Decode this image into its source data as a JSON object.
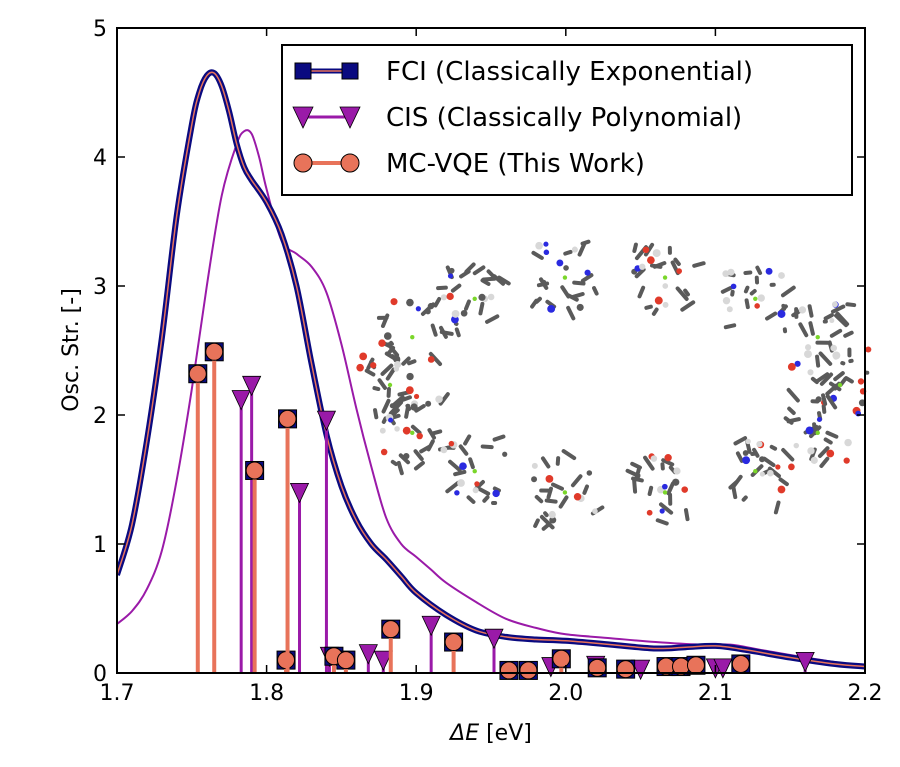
{
  "chart_data": {
    "type": "line",
    "xlabel_math": "ΔE",
    "xlabel_unit": " [eV]",
    "ylabel": "Osc. Str. [-]",
    "xlim": [
      1.7,
      2.2
    ],
    "ylim": [
      0,
      5
    ],
    "xticks": [
      "1.7",
      "1.8",
      "1.9",
      "2.0",
      "2.1",
      "2.2"
    ],
    "yticks": [
      "0",
      "1",
      "2",
      "3",
      "4",
      "5"
    ],
    "grid": false,
    "legend_position": "top-right",
    "legend": [
      {
        "label": "FCI (Classically Exponential)",
        "color": "#0a0a80",
        "marker": "square"
      },
      {
        "label": "CIS (Classically Polynomial)",
        "color": "#9a1aa8",
        "marker": "triangle-down"
      },
      {
        "label": "MC-VQE (This Work)",
        "color": "#e8735a",
        "marker": "circle"
      }
    ],
    "fci_curve": {
      "x": [
        1.7,
        1.71,
        1.72,
        1.73,
        1.74,
        1.75,
        1.755,
        1.76,
        1.765,
        1.77,
        1.775,
        1.78,
        1.785,
        1.79,
        1.8,
        1.81,
        1.82,
        1.83,
        1.84,
        1.85,
        1.86,
        1.87,
        1.88,
        1.89,
        1.9,
        1.92,
        1.94,
        1.96,
        1.98,
        2.0,
        2.03,
        2.06,
        2.08,
        2.1,
        2.12,
        2.15,
        2.18,
        2.2
      ],
      "y": [
        0.76,
        1.15,
        1.8,
        2.6,
        3.55,
        4.25,
        4.5,
        4.63,
        4.65,
        4.55,
        4.35,
        4.1,
        3.92,
        3.82,
        3.65,
        3.4,
        3.0,
        2.4,
        1.85,
        1.45,
        1.18,
        1.0,
        0.88,
        0.75,
        0.62,
        0.45,
        0.33,
        0.28,
        0.26,
        0.25,
        0.22,
        0.19,
        0.2,
        0.21,
        0.18,
        0.12,
        0.07,
        0.05
      ]
    },
    "cis_curve": {
      "x": [
        1.7,
        1.71,
        1.72,
        1.73,
        1.74,
        1.75,
        1.76,
        1.77,
        1.78,
        1.785,
        1.79,
        1.795,
        1.8,
        1.81,
        1.82,
        1.83,
        1.84,
        1.85,
        1.86,
        1.87,
        1.88,
        1.89,
        1.9,
        1.91,
        1.92,
        1.94,
        1.96,
        1.98,
        2.0,
        2.03,
        2.06,
        2.09,
        2.11,
        2.13,
        2.16,
        2.2
      ],
      "y": [
        0.38,
        0.48,
        0.65,
        0.95,
        1.5,
        2.2,
        3.0,
        3.7,
        4.1,
        4.2,
        4.18,
        4.0,
        3.75,
        3.35,
        3.25,
        3.15,
        2.95,
        2.55,
        2.05,
        1.6,
        1.2,
        1.0,
        0.9,
        0.8,
        0.7,
        0.55,
        0.42,
        0.35,
        0.3,
        0.27,
        0.24,
        0.22,
        0.22,
        0.18,
        0.12,
        0.05
      ]
    },
    "fci_stems": {
      "x": [
        1.754,
        1.765,
        1.792,
        1.813,
        1.814,
        1.845,
        1.853,
        1.883,
        1.925,
        1.962,
        1.975,
        1.997,
        2.021,
        2.04,
        2.067,
        2.077,
        2.087,
        2.117
      ],
      "y": [
        2.32,
        2.49,
        1.57,
        0.1,
        1.97,
        0.13,
        0.1,
        0.34,
        0.24,
        0.02,
        0.02,
        0.11,
        0.04,
        0.03,
        0.05,
        0.05,
        0.06,
        0.07
      ]
    },
    "cis_stems": {
      "x": [
        1.783,
        1.79,
        1.822,
        1.84,
        1.842,
        1.868,
        1.878,
        1.91,
        1.952,
        1.99,
        2.02,
        2.05,
        2.1,
        2.105,
        2.16
      ],
      "y": [
        2.12,
        2.23,
        1.4,
        1.96,
        0.13,
        0.15,
        0.1,
        0.37,
        0.27,
        0.05,
        0.06,
        0.03,
        0.04,
        0.04,
        0.09
      ]
    },
    "vqe_stems": {
      "x": [
        1.754,
        1.765,
        1.792,
        1.813,
        1.814,
        1.845,
        1.853,
        1.883,
        1.925,
        1.962,
        1.975,
        1.997,
        2.021,
        2.04,
        2.067,
        2.077,
        2.087,
        2.117
      ],
      "y": [
        2.32,
        2.49,
        1.57,
        0.1,
        1.97,
        0.13,
        0.1,
        0.34,
        0.24,
        0.02,
        0.02,
        0.11,
        0.04,
        0.03,
        0.05,
        0.05,
        0.06,
        0.07
      ]
    }
  },
  "inset": {
    "icon": "molecular-ring-structure",
    "colors": {
      "carbon": "#5a5a5a",
      "nitrogen": "#2a2ae0",
      "oxygen": "#e03a2a",
      "hydrogen": "#d8d8d8",
      "magnesium": "#7ad62a"
    }
  }
}
